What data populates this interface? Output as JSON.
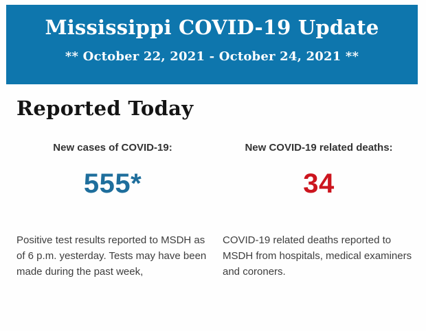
{
  "header": {
    "title": "Mississippi COVID-19 Update",
    "date_range": "** October 22, 2021 - October 24, 2021 **",
    "background_color": "#0e76ad",
    "text_color": "#ffffff"
  },
  "section": {
    "heading": "Reported Today"
  },
  "stats": {
    "cases": {
      "label": "New cases of COVID-19:",
      "value": "555*",
      "value_color": "#1e6e9c",
      "description": "Positive test results reported to MSDH as of 6 p.m. yesterday. Tests may have been made during the past week,"
    },
    "deaths": {
      "label": "New COVID-19 related deaths:",
      "value": "34",
      "value_color": "#cc151e",
      "description": "COVID-19 related deaths reported to MSDH from hospitals, medical examiners and coroners."
    }
  }
}
